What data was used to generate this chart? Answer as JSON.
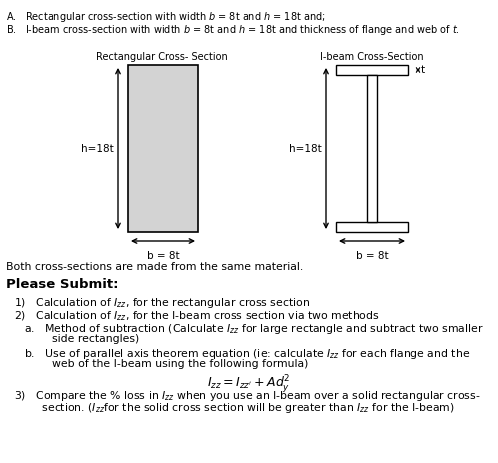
{
  "bg_color": "#ffffff",
  "line_color": "#000000",
  "rect_fill": "#d3d3d3",
  "ibeam_fill": "#ffffff",
  "header_a": "A.   Rectangular cross-section with width $b$ = 8t and $h$ = 18t and;",
  "header_b": "B.   I-beam cross-section with width $b$ = 8t and $h$ = 18t and thickness of flange and web of $t$.",
  "rect_label": "Rectangular Cross- Section",
  "ibeam_label": "I-beam Cross-Section",
  "h_label": "h=18t",
  "b_rect_label": "b = 8t",
  "b_ibeam_label": "b = 8t",
  "t_label": "t",
  "material_text": "Both cross-sections are made from the same material.",
  "submit_title": "Please Submit:",
  "item1_pre": "1)   Calculation of $I_{zz}$, for the rectangular cross section",
  "item2_pre": "2)   Calculation of $I_{zz}$, for the I-beam cross section via two methods",
  "item2a_1": "a.   Method of subtraction (Calculate $I_{zz}$ for large rectangle and subtract two smaller",
  "item2a_2": "        side rectangles)",
  "item2b_1": "b.   Use of parallel axis theorem equation (ie: calculate $I_{zz}$ for each flange and the",
  "item2b_2": "        web of the I-beam using the following formula)",
  "formula": "$I_{zz} = I_{zz'} + Ad_y^2$",
  "item3_1": "3)   Compare the % loss in $I_{zz}$ when you use an I-beam over a solid rectangular cross-",
  "item3_2": "        section. ($I_{zz}$for the solid cross section will be greater than $I_{zz}$ for the I-beam)"
}
